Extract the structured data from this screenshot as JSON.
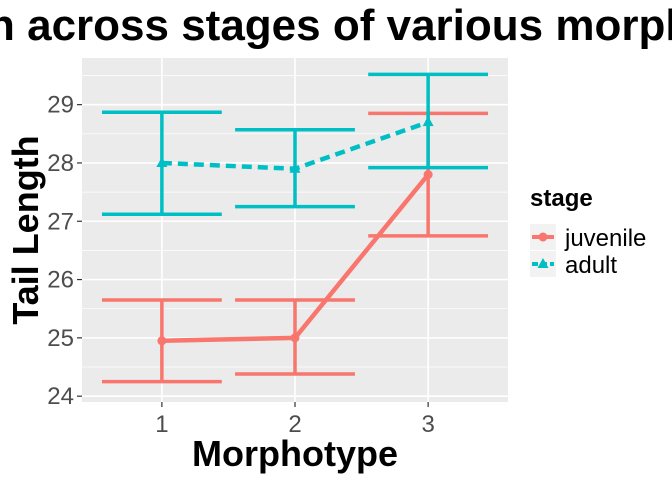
{
  "chart_data": {
    "type": "line",
    "title": "n across stages of various morpho",
    "xlabel": "Morphotype",
    "ylabel": "Tail Length",
    "categories": [
      "1",
      "2",
      "3"
    ],
    "ylim": [
      23.9,
      29.8
    ],
    "yticks": [
      "24",
      "25",
      "26",
      "27",
      "28",
      "29"
    ],
    "grid": true,
    "legend": {
      "title": "stage",
      "position": "right"
    },
    "series": [
      {
        "name": "juvenile",
        "color": "#F8766D",
        "linetype": "solid",
        "marker": "circle",
        "values": [
          24.95,
          25.0,
          27.8
        ],
        "error_lower": [
          24.25,
          24.38,
          26.75
        ],
        "error_upper": [
          25.65,
          25.65,
          28.85
        ]
      },
      {
        "name": "adult",
        "color": "#00BFC4",
        "linetype": "dashed",
        "marker": "triangle",
        "values": [
          28.0,
          27.9,
          28.7
        ],
        "error_lower": [
          27.12,
          27.25,
          27.92
        ],
        "error_upper": [
          28.87,
          28.57,
          29.52
        ]
      }
    ]
  }
}
